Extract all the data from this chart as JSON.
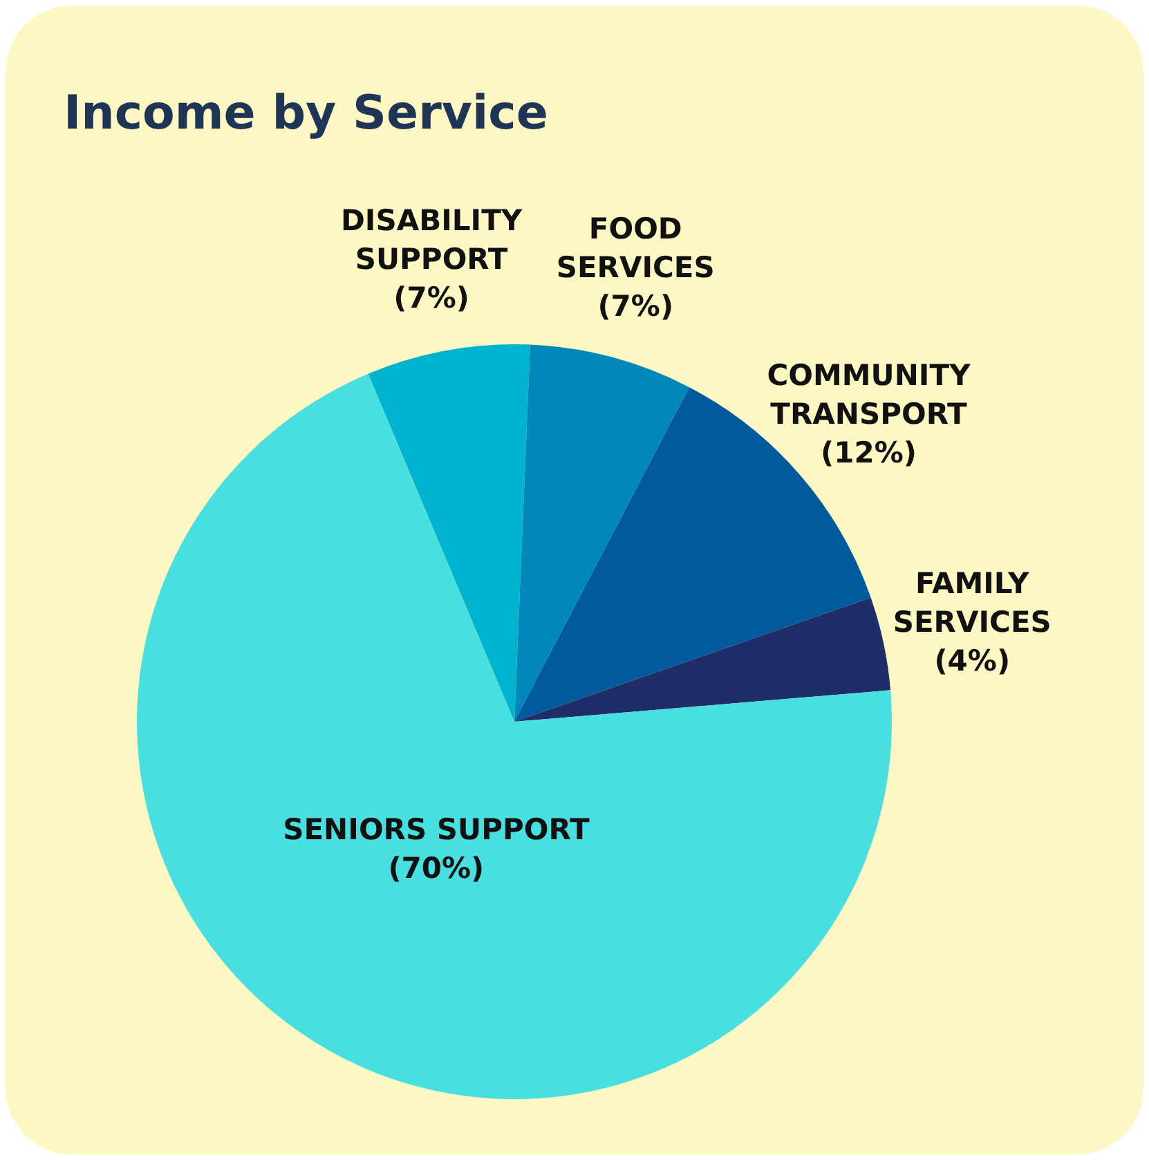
{
  "chart_data": {
    "type": "pie",
    "title": "Income by Service",
    "categories": [
      "DISABILITY SUPPORT",
      "FOOD SERVICES",
      "COMMUNITY TRANSPORT",
      "FAMILY SERVICES",
      "SENIORS SUPPORT"
    ],
    "values": [
      7,
      7,
      12,
      4,
      70
    ],
    "value_labels": [
      "(7%)",
      "(7%)",
      "(12%)",
      "(4%)",
      "(70%)"
    ],
    "colors": [
      "#00b4d0",
      "#0088b8",
      "#005a9c",
      "#1f2d6b",
      "#48dfe0"
    ],
    "legend": false
  }
}
